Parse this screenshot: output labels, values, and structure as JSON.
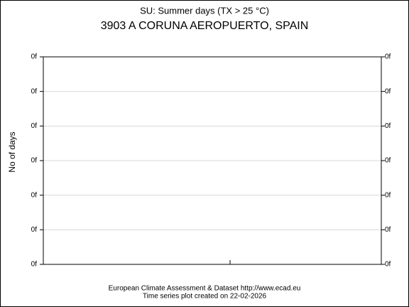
{
  "chart_data": {
    "type": "line",
    "title": "SU: Summer days (TX > 25 °C)",
    "subtitle": "3903 A CORUNA AEROPUERTO, SPAIN",
    "y_label": "No of days",
    "source": "European Climate Assessment & Dataset  http://www.ecad.eu",
    "note": "Time series plot created on 22-02-2026",
    "ylim": [
      0,
      6
    ],
    "yticks": [
      {
        "value": 0,
        "label": "0f"
      },
      {
        "value": 1,
        "label": "0f"
      },
      {
        "value": 2,
        "label": "0f"
      },
      {
        "value": 3,
        "label": "0f"
      },
      {
        "value": 4,
        "label": "0f"
      },
      {
        "value": 5,
        "label": "0f"
      },
      {
        "value": 6,
        "label": "0f"
      }
    ],
    "grid": true
  }
}
